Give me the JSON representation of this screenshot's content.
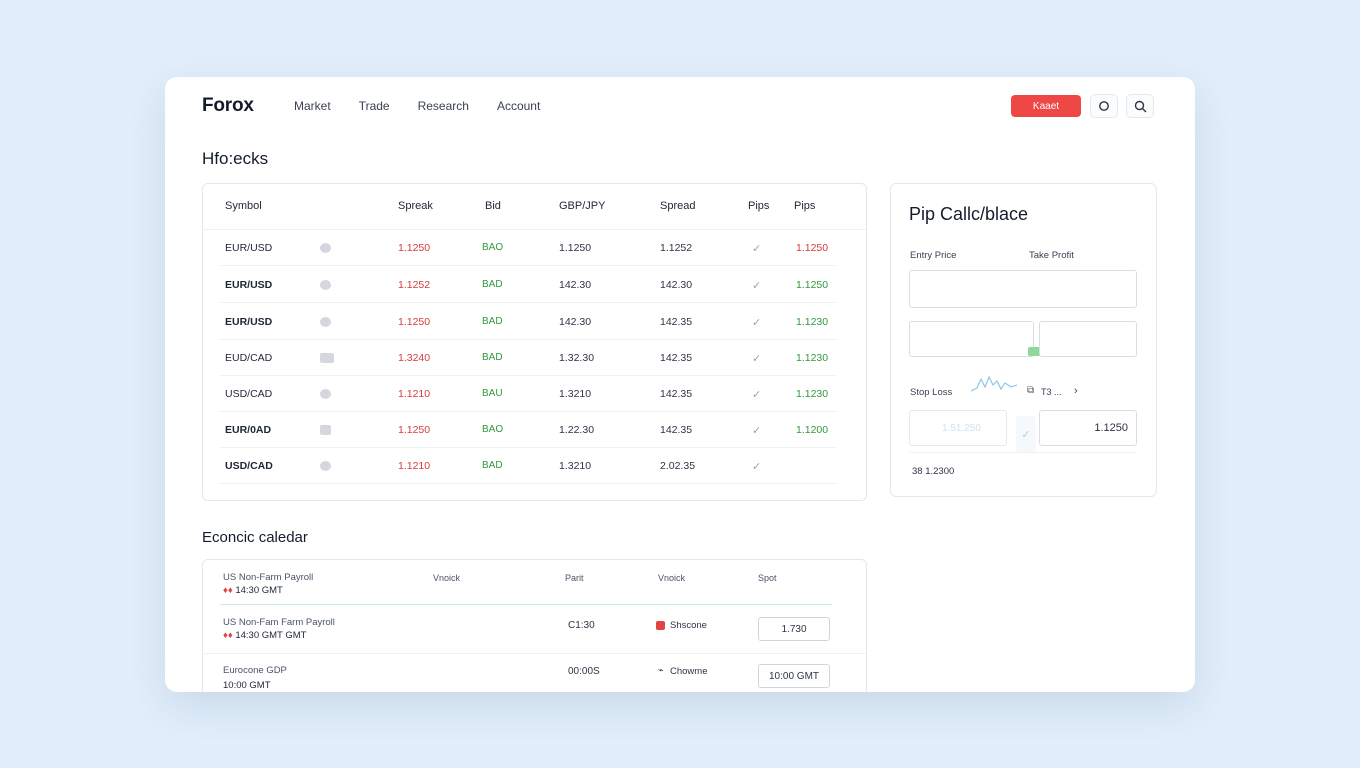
{
  "header": {
    "brand": "Forox",
    "nav": [
      "Market",
      "Trade",
      "Research",
      "Account"
    ],
    "primary_button": "Kaaet"
  },
  "watchlist": {
    "title": "Hfo:ecks",
    "columns": [
      "Symbol",
      "Spreak",
      "Bid",
      "GBP/JPY",
      "Spread",
      "Pips",
      "Pips"
    ],
    "rows": [
      {
        "symbol": "EUR/USD",
        "spread": "1.1250",
        "bid": "BAO",
        "gbp": "1.1250",
        "spread2": "1.1252",
        "check": "✓",
        "pips": "1.1250",
        "pips_color": "red"
      },
      {
        "symbol": "EUR/USD",
        "spread": "1.1252",
        "bid": "BAD",
        "gbp": "142.30",
        "spread2": "142.30",
        "check": "✓",
        "pips": "1.1250",
        "pips_color": "green"
      },
      {
        "symbol": "EUR/USD",
        "spread": "1.1250",
        "bid": "BAD",
        "gbp": "142.30",
        "spread2": "142.35",
        "check": "✓",
        "pips": "1.1230",
        "pips_color": "green"
      },
      {
        "symbol": "EUD/CAD",
        "spread": "1.3240",
        "bid": "BAD",
        "gbp": "1.32.30",
        "spread2": "142.35",
        "check": "✓",
        "pips": "1.1230",
        "pips_color": "green"
      },
      {
        "symbol": "USD/CAD",
        "spread": "1.1210",
        "bid": "BAU",
        "gbp": "1.3210",
        "spread2": "142.35",
        "check": "✓",
        "pips": "1.1230",
        "pips_color": "green"
      },
      {
        "symbol": "EUR/0AD",
        "spread": "1.1250",
        "bid": "BAO",
        "gbp": "1.22.30",
        "spread2": "142.35",
        "check": "✓",
        "pips": "1.1200",
        "pips_color": "green"
      },
      {
        "symbol": "USD/CAD",
        "spread": "1.1210",
        "bid": "BAD",
        "gbp": "1.3210",
        "spread2": "2.02.35",
        "check": "✓",
        "pips": "",
        "pips_color": "green"
      }
    ]
  },
  "calculator": {
    "title": "Pip Callc/blace",
    "entry_label": "Entry Price",
    "take_profit_label": "Take Profit",
    "stop_loss_label": "Stop Loss",
    "small_label": "T3 ...",
    "ghost_value": "1.51.250",
    "stop_value": "1.1250",
    "result": "38 1.2300"
  },
  "calendar": {
    "title": "Econcic caledar",
    "head_event": "US Non-Farm Payroll",
    "head_time": "14:30 GMT",
    "head_columns": [
      "Vnoick",
      "Parit",
      "Vnoick",
      "Spot"
    ],
    "rows": [
      {
        "event": "US Non-Fam Farm Payroll",
        "time": "14:30 GMT GMT",
        "value": "C1:30",
        "impact": "Shscone",
        "button": "1.730"
      },
      {
        "event": "Eurocone GDP",
        "time": "10:00 GMT",
        "value": "00:00S",
        "impact": "Chowme",
        "button": "10:00 GMT"
      }
    ]
  },
  "colors": {
    "accent_red": "#ef4646",
    "positive_green": "#2e9a3e",
    "negative_red": "#d63c3c",
    "background": "#e1eefb"
  }
}
